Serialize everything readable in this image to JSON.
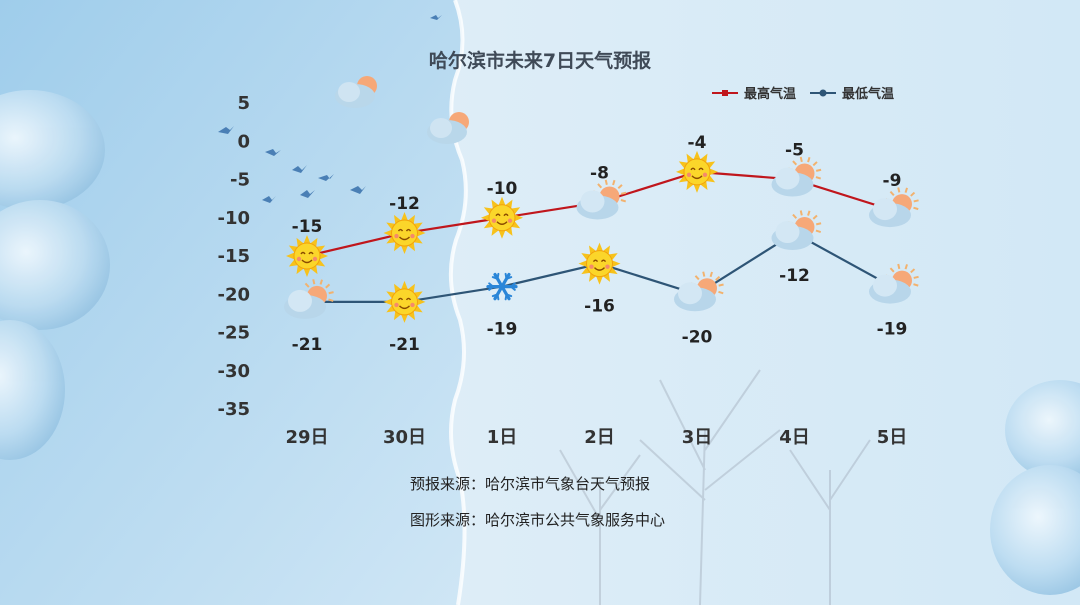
{
  "title": "哈尔滨市未来7日天气预报",
  "legend": {
    "high": "最高气温",
    "low": "最低气温"
  },
  "sources": {
    "forecast": "预报来源：哈尔滨市气象台天气预报",
    "graphic": "图形来源：哈尔滨市公共气象服务中心"
  },
  "colors": {
    "high": "#c0161c",
    "low": "#2e5576",
    "bg": "#d7eaf6",
    "title": "#3f4a57"
  },
  "chart_data": {
    "type": "line",
    "categories": [
      "29日",
      "30日",
      "1日",
      "2日",
      "3日",
      "4日",
      "5日"
    ],
    "series": [
      {
        "name": "最高气温",
        "values": [
          -15,
          -12,
          -10,
          -8,
          -4,
          -5,
          -9
        ]
      },
      {
        "name": "最低气温",
        "values": [
          -21,
          -21,
          -19,
          -16,
          -20,
          -12,
          -19
        ]
      }
    ],
    "ylim": [
      -35,
      5
    ],
    "yticks": [
      5,
      0,
      -5,
      -10,
      -15,
      -20,
      -25,
      -30,
      -35
    ],
    "grid": false,
    "legend_position": "top-right",
    "weather_icons": {
      "high": [
        "sun-icon",
        "sun-icon",
        "sun-icon",
        "cloud-sun-icon",
        "sun-icon",
        "cloud-sun-icon",
        "cloud-sun-icon"
      ],
      "low": [
        "cloud-sun-icon",
        "sun-icon",
        "snowflake-icon",
        "sun-icon",
        "cloud-sun-icon",
        "cloud-sun-icon",
        "cloud-sun-icon"
      ]
    }
  }
}
